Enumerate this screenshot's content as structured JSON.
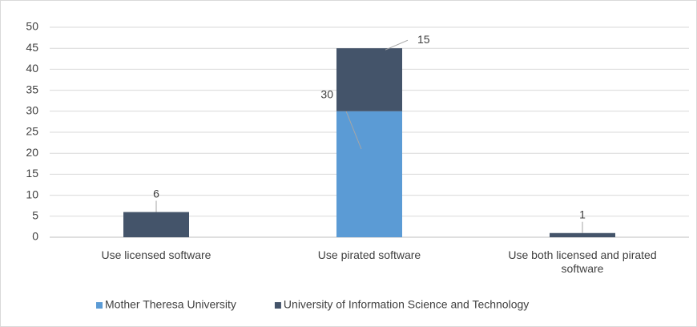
{
  "chart_data": {
    "type": "stacked_bar",
    "categories": [
      "Use licensed software",
      "Use pirated software",
      "Use both licensed and pirated software"
    ],
    "series": [
      {
        "name": "Mother Theresa University",
        "color": "#5b9bd5",
        "values": [
          null,
          30,
          null
        ]
      },
      {
        "name": "University of Information Science and Technology",
        "color": "#44546a",
        "values": [
          6,
          15,
          1
        ]
      }
    ],
    "ylim": [
      0,
      50
    ],
    "yticks": [
      0,
      5,
      10,
      15,
      20,
      25,
      30,
      35,
      40,
      45,
      50
    ],
    "grid": true,
    "legend": "bottom"
  }
}
